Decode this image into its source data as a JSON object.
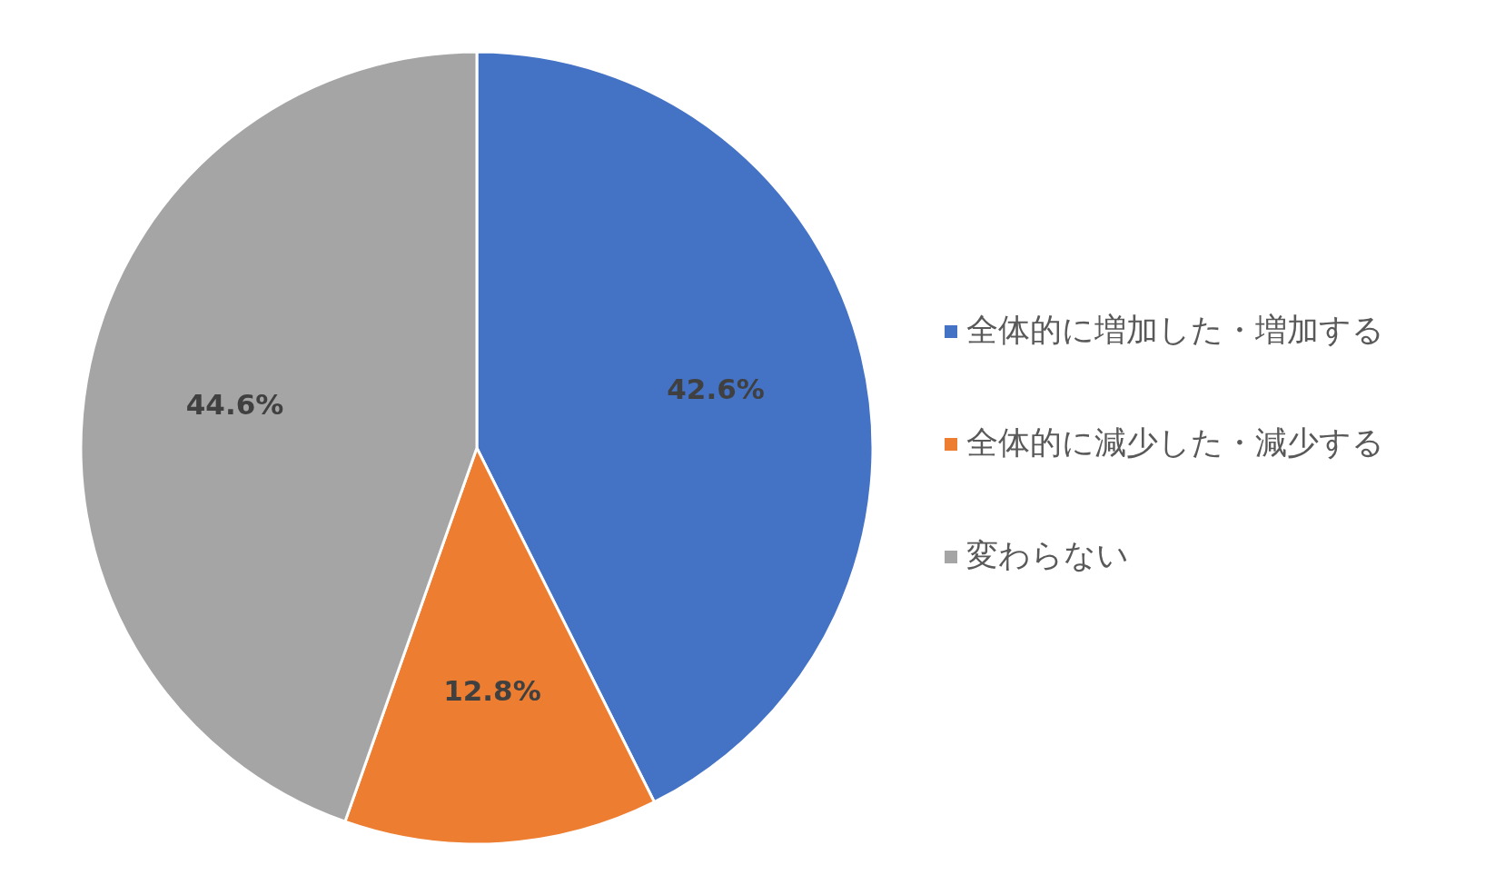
{
  "chart_data": {
    "type": "pie",
    "categories": [
      "全体的に増加した・増加する",
      "全体的に減少した・減少する",
      "変わらない"
    ],
    "values": [
      42.6,
      12.8,
      44.6
    ],
    "colors": [
      "#4472c4",
      "#ed7d31",
      "#a5a5a5"
    ],
    "value_labels": [
      "42.6%",
      "12.8%",
      "44.6%"
    ],
    "legend": "right"
  }
}
